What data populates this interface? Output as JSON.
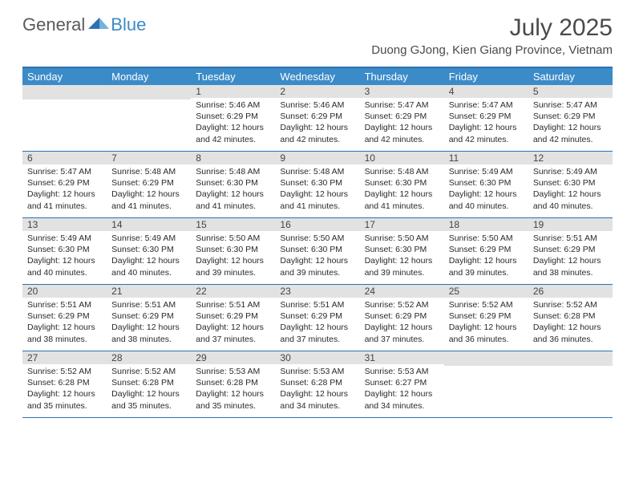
{
  "logo": {
    "part1": "General",
    "part2": "Blue"
  },
  "title": "July 2025",
  "location": "Duong GJong, Kien Giang Province, Vietnam",
  "colors": {
    "header_bg": "#3b8bc9",
    "border": "#2f70b0",
    "daynum_bg": "#e2e2e2",
    "text": "#2a2a2a",
    "title_color": "#4a4a4a"
  },
  "day_headers": [
    "Sunday",
    "Monday",
    "Tuesday",
    "Wednesday",
    "Thursday",
    "Friday",
    "Saturday"
  ],
  "weeks": [
    [
      {
        "n": "",
        "sr": "",
        "ss": "",
        "dl": ""
      },
      {
        "n": "",
        "sr": "",
        "ss": "",
        "dl": ""
      },
      {
        "n": "1",
        "sr": "5:46 AM",
        "ss": "6:29 PM",
        "dl": "12 hours and 42 minutes."
      },
      {
        "n": "2",
        "sr": "5:46 AM",
        "ss": "6:29 PM",
        "dl": "12 hours and 42 minutes."
      },
      {
        "n": "3",
        "sr": "5:47 AM",
        "ss": "6:29 PM",
        "dl": "12 hours and 42 minutes."
      },
      {
        "n": "4",
        "sr": "5:47 AM",
        "ss": "6:29 PM",
        "dl": "12 hours and 42 minutes."
      },
      {
        "n": "5",
        "sr": "5:47 AM",
        "ss": "6:29 PM",
        "dl": "12 hours and 42 minutes."
      }
    ],
    [
      {
        "n": "6",
        "sr": "5:47 AM",
        "ss": "6:29 PM",
        "dl": "12 hours and 41 minutes."
      },
      {
        "n": "7",
        "sr": "5:48 AM",
        "ss": "6:29 PM",
        "dl": "12 hours and 41 minutes."
      },
      {
        "n": "8",
        "sr": "5:48 AM",
        "ss": "6:30 PM",
        "dl": "12 hours and 41 minutes."
      },
      {
        "n": "9",
        "sr": "5:48 AM",
        "ss": "6:30 PM",
        "dl": "12 hours and 41 minutes."
      },
      {
        "n": "10",
        "sr": "5:48 AM",
        "ss": "6:30 PM",
        "dl": "12 hours and 41 minutes."
      },
      {
        "n": "11",
        "sr": "5:49 AM",
        "ss": "6:30 PM",
        "dl": "12 hours and 40 minutes."
      },
      {
        "n": "12",
        "sr": "5:49 AM",
        "ss": "6:30 PM",
        "dl": "12 hours and 40 minutes."
      }
    ],
    [
      {
        "n": "13",
        "sr": "5:49 AM",
        "ss": "6:30 PM",
        "dl": "12 hours and 40 minutes."
      },
      {
        "n": "14",
        "sr": "5:49 AM",
        "ss": "6:30 PM",
        "dl": "12 hours and 40 minutes."
      },
      {
        "n": "15",
        "sr": "5:50 AM",
        "ss": "6:30 PM",
        "dl": "12 hours and 39 minutes."
      },
      {
        "n": "16",
        "sr": "5:50 AM",
        "ss": "6:30 PM",
        "dl": "12 hours and 39 minutes."
      },
      {
        "n": "17",
        "sr": "5:50 AM",
        "ss": "6:30 PM",
        "dl": "12 hours and 39 minutes."
      },
      {
        "n": "18",
        "sr": "5:50 AM",
        "ss": "6:29 PM",
        "dl": "12 hours and 39 minutes."
      },
      {
        "n": "19",
        "sr": "5:51 AM",
        "ss": "6:29 PM",
        "dl": "12 hours and 38 minutes."
      }
    ],
    [
      {
        "n": "20",
        "sr": "5:51 AM",
        "ss": "6:29 PM",
        "dl": "12 hours and 38 minutes."
      },
      {
        "n": "21",
        "sr": "5:51 AM",
        "ss": "6:29 PM",
        "dl": "12 hours and 38 minutes."
      },
      {
        "n": "22",
        "sr": "5:51 AM",
        "ss": "6:29 PM",
        "dl": "12 hours and 37 minutes."
      },
      {
        "n": "23",
        "sr": "5:51 AM",
        "ss": "6:29 PM",
        "dl": "12 hours and 37 minutes."
      },
      {
        "n": "24",
        "sr": "5:52 AM",
        "ss": "6:29 PM",
        "dl": "12 hours and 37 minutes."
      },
      {
        "n": "25",
        "sr": "5:52 AM",
        "ss": "6:29 PM",
        "dl": "12 hours and 36 minutes."
      },
      {
        "n": "26",
        "sr": "5:52 AM",
        "ss": "6:28 PM",
        "dl": "12 hours and 36 minutes."
      }
    ],
    [
      {
        "n": "27",
        "sr": "5:52 AM",
        "ss": "6:28 PM",
        "dl": "12 hours and 35 minutes."
      },
      {
        "n": "28",
        "sr": "5:52 AM",
        "ss": "6:28 PM",
        "dl": "12 hours and 35 minutes."
      },
      {
        "n": "29",
        "sr": "5:53 AM",
        "ss": "6:28 PM",
        "dl": "12 hours and 35 minutes."
      },
      {
        "n": "30",
        "sr": "5:53 AM",
        "ss": "6:28 PM",
        "dl": "12 hours and 34 minutes."
      },
      {
        "n": "31",
        "sr": "5:53 AM",
        "ss": "6:27 PM",
        "dl": "12 hours and 34 minutes."
      },
      {
        "n": "",
        "sr": "",
        "ss": "",
        "dl": ""
      },
      {
        "n": "",
        "sr": "",
        "ss": "",
        "dl": ""
      }
    ]
  ],
  "labels": {
    "sunrise": "Sunrise:",
    "sunset": "Sunset:",
    "daylight": "Daylight:"
  }
}
